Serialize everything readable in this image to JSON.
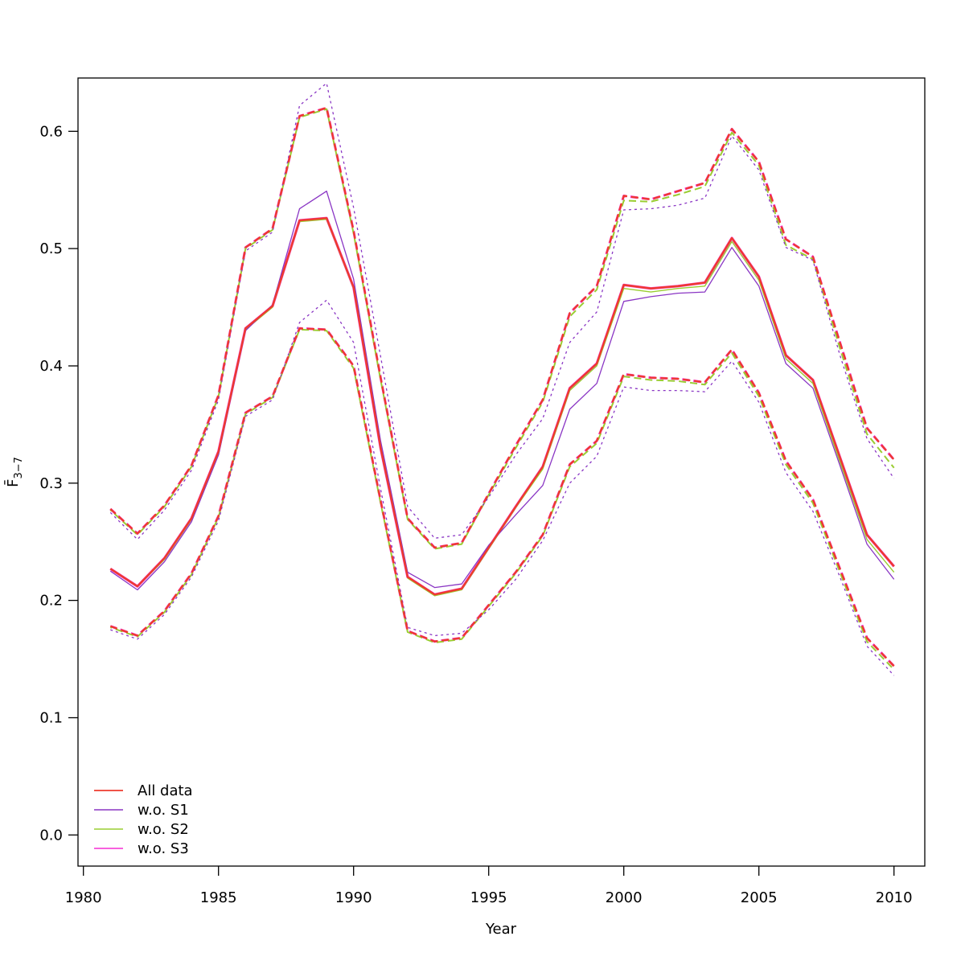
{
  "figure": {
    "xlabel": "Year",
    "ylabel_main": "F̄",
    "ylabel_sub": "3−7",
    "background": "#ffffff",
    "frame_color": "#000000"
  },
  "axes": {
    "x": {
      "ticks": [
        1980,
        1985,
        1990,
        1995,
        2000,
        2005,
        2010
      ],
      "labels": [
        "1980",
        "1985",
        "1990",
        "1995",
        "2000",
        "2005",
        "2010"
      ]
    },
    "y": {
      "ticks": [
        0.0,
        0.1,
        0.2,
        0.3,
        0.4,
        0.5,
        0.6
      ],
      "labels": [
        "0.0",
        "0.1",
        "0.2",
        "0.3",
        "0.4",
        "0.5",
        "0.6"
      ]
    }
  },
  "legend": {
    "items": [
      {
        "label": "All data",
        "color": "#ee3b2e"
      },
      {
        "label": "w.o. S1",
        "color": "#8a36c4"
      },
      {
        "label": "w.o. S2",
        "color": "#9acd32"
      },
      {
        "label": "w.o. S3",
        "color": "#f52dd4"
      }
    ]
  },
  "chart_data": {
    "type": "line",
    "title": "",
    "xlabel": "Year",
    "ylabel": "F̄3−7",
    "xlim": [
      1980,
      2011
    ],
    "ylim": [
      0.0,
      0.65
    ],
    "grid": false,
    "legend_position": "bottom-left",
    "x": [
      1981,
      1982,
      1983,
      1984,
      1985,
      1986,
      1987,
      1988,
      1989,
      1990,
      1991,
      1992,
      1993,
      1994,
      1995,
      1996,
      1997,
      1998,
      1999,
      2000,
      2001,
      2002,
      2003,
      2004,
      2005,
      2006,
      2007,
      2008,
      2009,
      2010
    ],
    "series": [
      {
        "id": "wo-s3",
        "name": "w.o. S3",
        "color": "#f52dd4",
        "center_style": "solid",
        "bound_style": "dashed",
        "center_width": 3.2,
        "bound_width": 3.0,
        "dash_offset": 1,
        "central": [
          0.227,
          0.212,
          0.236,
          0.27,
          0.327,
          0.432,
          0.451,
          0.524,
          0.526,
          0.467,
          0.33,
          0.22,
          0.205,
          0.21,
          0.245,
          0.28,
          0.314,
          0.381,
          0.402,
          0.469,
          0.466,
          0.468,
          0.471,
          0.509,
          0.476,
          0.409,
          0.388,
          0.322,
          0.256,
          0.229
        ],
        "upper": [
          0.278,
          0.257,
          0.281,
          0.315,
          0.375,
          0.501,
          0.517,
          0.613,
          0.62,
          0.515,
          0.39,
          0.27,
          0.245,
          0.249,
          0.291,
          0.332,
          0.371,
          0.445,
          0.468,
          0.545,
          0.542,
          0.549,
          0.556,
          0.602,
          0.574,
          0.508,
          0.493,
          0.42,
          0.347,
          0.32
        ],
        "lower": [
          0.178,
          0.17,
          0.191,
          0.223,
          0.272,
          0.36,
          0.374,
          0.432,
          0.431,
          0.4,
          0.285,
          0.174,
          0.165,
          0.168,
          0.196,
          0.224,
          0.256,
          0.316,
          0.336,
          0.393,
          0.39,
          0.389,
          0.386,
          0.414,
          0.377,
          0.319,
          0.286,
          0.227,
          0.168,
          0.144
        ]
      },
      {
        "id": "wo-s2",
        "name": "w.o. S2",
        "color": "#9acd32",
        "center_style": "solid",
        "bound_style": "dashed",
        "center_width": 1.4,
        "bound_width": 2.0,
        "dash_offset": 7,
        "central": [
          0.227,
          0.212,
          0.235,
          0.269,
          0.326,
          0.431,
          0.45,
          0.523,
          0.525,
          0.466,
          0.329,
          0.219,
          0.204,
          0.209,
          0.244,
          0.279,
          0.312,
          0.379,
          0.4,
          0.466,
          0.463,
          0.466,
          0.468,
          0.506,
          0.473,
          0.406,
          0.385,
          0.318,
          0.252,
          0.224
        ],
        "upper": [
          0.277,
          0.256,
          0.28,
          0.314,
          0.374,
          0.5,
          0.516,
          0.612,
          0.619,
          0.513,
          0.388,
          0.269,
          0.244,
          0.248,
          0.29,
          0.33,
          0.369,
          0.442,
          0.465,
          0.541,
          0.54,
          0.546,
          0.553,
          0.599,
          0.571,
          0.503,
          0.491,
          0.415,
          0.342,
          0.313
        ],
        "lower": [
          0.177,
          0.169,
          0.19,
          0.222,
          0.271,
          0.359,
          0.373,
          0.431,
          0.43,
          0.398,
          0.283,
          0.173,
          0.164,
          0.167,
          0.195,
          0.223,
          0.255,
          0.314,
          0.334,
          0.391,
          0.388,
          0.387,
          0.384,
          0.411,
          0.374,
          0.316,
          0.283,
          0.224,
          0.165,
          0.141
        ]
      },
      {
        "id": "wo-s1",
        "name": "w.o. S1",
        "color": "#8a36c4",
        "center_style": "solid",
        "bound_style": "dotted",
        "center_width": 1.3,
        "bound_width": 1.3,
        "dash_offset": 0,
        "central": [
          0.225,
          0.209,
          0.233,
          0.267,
          0.324,
          0.43,
          0.452,
          0.534,
          0.549,
          0.474,
          0.336,
          0.224,
          0.211,
          0.214,
          0.247,
          0.273,
          0.298,
          0.363,
          0.385,
          0.455,
          0.459,
          0.462,
          0.463,
          0.501,
          0.468,
          0.402,
          0.381,
          0.315,
          0.248,
          0.218
        ],
        "upper": [
          0.275,
          0.252,
          0.277,
          0.311,
          0.371,
          0.498,
          0.514,
          0.622,
          0.641,
          0.535,
          0.408,
          0.28,
          0.253,
          0.256,
          0.288,
          0.324,
          0.355,
          0.42,
          0.446,
          0.533,
          0.534,
          0.537,
          0.543,
          0.596,
          0.567,
          0.501,
          0.49,
          0.409,
          0.338,
          0.304
        ],
        "lower": [
          0.175,
          0.167,
          0.188,
          0.22,
          0.268,
          0.357,
          0.371,
          0.437,
          0.456,
          0.42,
          0.295,
          0.177,
          0.17,
          0.172,
          0.192,
          0.218,
          0.251,
          0.3,
          0.323,
          0.382,
          0.379,
          0.379,
          0.378,
          0.404,
          0.369,
          0.309,
          0.276,
          0.22,
          0.161,
          0.136
        ]
      },
      {
        "id": "all-data",
        "name": "All data",
        "color": "#ee3b2e",
        "center_style": "solid",
        "bound_style": "dashed",
        "center_width": 2.4,
        "bound_width": 2.3,
        "dash_offset": 0,
        "central": [
          0.227,
          0.212,
          0.236,
          0.27,
          0.327,
          0.432,
          0.451,
          0.524,
          0.526,
          0.467,
          0.33,
          0.22,
          0.205,
          0.21,
          0.245,
          0.28,
          0.314,
          0.381,
          0.402,
          0.469,
          0.466,
          0.468,
          0.471,
          0.509,
          0.476,
          0.409,
          0.388,
          0.322,
          0.256,
          0.229
        ],
        "upper": [
          0.278,
          0.257,
          0.281,
          0.315,
          0.375,
          0.501,
          0.517,
          0.613,
          0.62,
          0.515,
          0.39,
          0.27,
          0.245,
          0.249,
          0.291,
          0.332,
          0.371,
          0.445,
          0.468,
          0.545,
          0.542,
          0.549,
          0.556,
          0.602,
          0.574,
          0.508,
          0.493,
          0.42,
          0.347,
          0.32
        ],
        "lower": [
          0.178,
          0.17,
          0.191,
          0.223,
          0.272,
          0.36,
          0.374,
          0.432,
          0.431,
          0.4,
          0.285,
          0.174,
          0.165,
          0.168,
          0.196,
          0.224,
          0.256,
          0.316,
          0.336,
          0.393,
          0.39,
          0.389,
          0.386,
          0.414,
          0.377,
          0.319,
          0.286,
          0.227,
          0.168,
          0.144
        ]
      }
    ]
  }
}
